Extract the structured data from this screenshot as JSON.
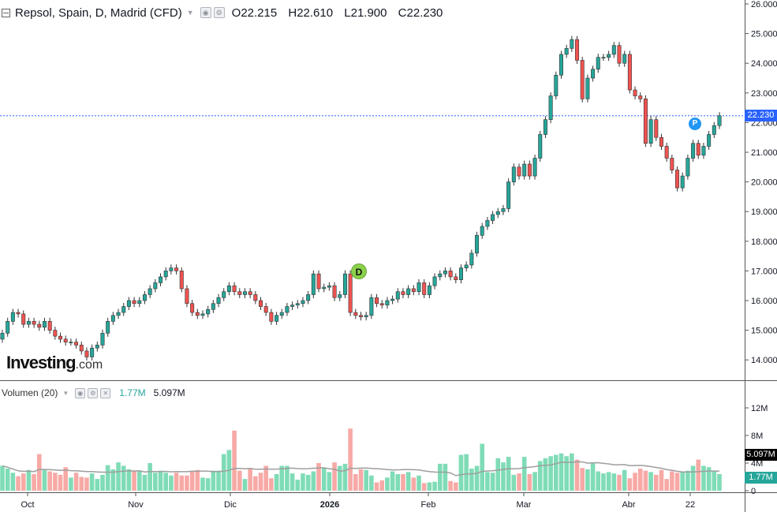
{
  "header": {
    "title": "Repsol, Spain, D, Madrid (CFD)",
    "open": "O22.215",
    "high": "H22.610",
    "low": "L21.900",
    "close": "C22.230"
  },
  "volume_header": {
    "label": "Volumen (20)",
    "current": "1.77M",
    "average": "5.097M"
  },
  "logo": {
    "brand": "Investing",
    "suffix": ".com"
  },
  "price_tag": "22.230",
  "volume_tags": {
    "average": "5.097M",
    "current": "1.77M"
  },
  "markers": {
    "dividend": "D",
    "p": "P"
  },
  "colors": {
    "up": "#26a69a",
    "down": "#ef5350",
    "vol_up": "#7fdcb6",
    "vol_down": "#f7a9a6",
    "avg_line": "#9e9e9e",
    "price_line": "#2962ff"
  },
  "chart_data": [
    {
      "type": "candlestick",
      "title": "Repsol, Spain, D, Madrid (CFD)",
      "ylim": [
        13.5,
        26.0
      ],
      "y_ticks": [
        "14.000",
        "15.000",
        "16.000",
        "17.000",
        "18.000",
        "19.000",
        "20.000",
        "21.000",
        "22.000",
        "23.000",
        "24.000",
        "25.000",
        "26.000"
      ],
      "x_ticks": [
        "Oct",
        "Nov",
        "Dic",
        "2026",
        "Feb",
        "Mar",
        "Abr",
        "22"
      ],
      "last_close": 22.23,
      "close": [
        14.9,
        15.3,
        15.6,
        15.55,
        15.2,
        15.3,
        15.2,
        15.1,
        15.3,
        15.0,
        14.8,
        14.7,
        14.6,
        14.6,
        14.5,
        14.3,
        14.1,
        14.4,
        14.5,
        14.9,
        15.3,
        15.5,
        15.6,
        15.8,
        16.0,
        15.9,
        16.0,
        16.2,
        16.4,
        16.6,
        16.8,
        17.0,
        17.1,
        17.0,
        16.4,
        15.9,
        15.6,
        15.5,
        15.55,
        15.7,
        15.9,
        16.1,
        16.3,
        16.5,
        16.3,
        16.2,
        16.3,
        16.2,
        16.0,
        15.8,
        15.6,
        15.3,
        15.5,
        15.6,
        15.8,
        15.85,
        15.9,
        16.0,
        16.2,
        16.9,
        16.4,
        16.45,
        16.5,
        16.1,
        16.2,
        16.9,
        15.6,
        15.5,
        15.45,
        15.5,
        16.1,
        15.9,
        15.85,
        16.0,
        16.05,
        16.3,
        16.2,
        16.4,
        16.3,
        16.6,
        16.2,
        16.5,
        16.8,
        16.9,
        17.0,
        16.8,
        16.7,
        17.1,
        17.2,
        17.6,
        18.2,
        18.5,
        18.7,
        18.9,
        19.0,
        19.1,
        20.0,
        20.5,
        20.2,
        20.6,
        20.2,
        20.8,
        21.6,
        22.1,
        22.9,
        23.6,
        24.3,
        24.5,
        24.8,
        24.1,
        22.8,
        23.5,
        23.8,
        24.2,
        24.2,
        24.3,
        24.6,
        24.0,
        24.3,
        23.1,
        22.9,
        22.8,
        21.3,
        22.1,
        21.5,
        21.2,
        20.8,
        20.4,
        19.8,
        20.2,
        20.8,
        21.3,
        20.9,
        21.2,
        21.6,
        21.9,
        22.23
      ],
      "volume_m": [
        3.6,
        3.2,
        2.6,
        2.1,
        2.5,
        3.0,
        2.4,
        5.3,
        3.0,
        2.8,
        2.6,
        2.3,
        3.4,
        1.9,
        2.6,
        2.0,
        1.9,
        2.5,
        1.7,
        2.3,
        3.7,
        3.1,
        4.1,
        3.6,
        3.1,
        2.8,
        2.8,
        2.3,
        4.0,
        2.6,
        2.9,
        2.6,
        2.2,
        2.6,
        2.2,
        2.2,
        2.9,
        3.0,
        1.9,
        1.8,
        2.9,
        2.9,
        5.3,
        5.9,
        8.7,
        2.9,
        1.7,
        3.2,
        2.1,
        2.6,
        3.6,
        1.8,
        2.4,
        3.6,
        3.6,
        2.5,
        1.6,
        2.5,
        2.3,
        2.8,
        4.0,
        3.3,
        2.7,
        4.1,
        3.6,
        3.9,
        9.0,
        2.4,
        3.1,
        3.0,
        2.2,
        1.2,
        1.5,
        1.9,
        2.8,
        2.4,
        2.4,
        2.7,
        1.9,
        2.2,
        1.1,
        1.2,
        1.3,
        3.9,
        3.9,
        1.4,
        1.2,
        5.2,
        5.3,
        3.2,
        3.6,
        6.8,
        2.7,
        2.6,
        4.7,
        4.1,
        4.9,
        2.3,
        2.5,
        4.9,
        2.4,
        2.7,
        4.3,
        4.7,
        5.0,
        5.2,
        5.4,
        5.0,
        5.4,
        4.5,
        3.3,
        3.1,
        4.0,
        2.8,
        2.5,
        2.7,
        2.5,
        2.3,
        3.0,
        1.8,
        2.6,
        3.2,
        2.9,
        2.7,
        2.3,
        3.0,
        1.7,
        2.8,
        2.6,
        2.7,
        2.9,
        3.6,
        4.5,
        3.6,
        3.4,
        2.8,
        2.4,
        1.9,
        2.5,
        2.2,
        1.77
      ],
      "volume_ylim": [
        0,
        14
      ],
      "volume_ticks": [
        "0",
        "4M",
        "8M",
        "12M"
      ],
      "volume_avg_m": 5.097
    }
  ]
}
